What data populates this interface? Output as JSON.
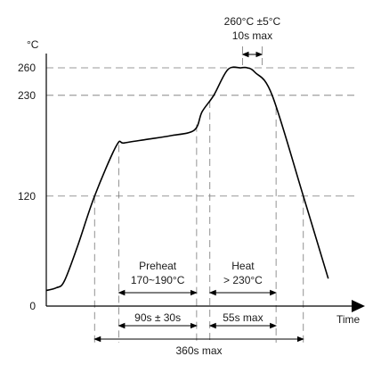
{
  "chart_data": {
    "type": "line",
    "title": "",
    "xlabel": "Time",
    "ylabel": "°C",
    "yticks": [
      {
        "value": 0,
        "label": "0"
      },
      {
        "value": 120,
        "label": "120"
      },
      {
        "value": 230,
        "label": "230"
      },
      {
        "value": 260,
        "label": "260"
      }
    ],
    "ylim": [
      0,
      275
    ],
    "xlim": [
      0,
      400
    ],
    "grid": true,
    "series": [
      {
        "x": [
          0,
          13,
          23,
          40,
          62,
          90,
          100,
          130,
          160,
          190,
          200,
          215,
          233,
          250,
          258,
          268,
          290,
          330,
          362
        ],
        "y": [
          17,
          20,
          27,
          65,
          120,
          175,
          178,
          182,
          186,
          192,
          212,
          230,
          258,
          260,
          260,
          255,
          230,
          120,
          30
        ]
      }
    ],
    "guides_x": [
      62,
      93,
      193,
      210,
      295,
      330,
      400
    ],
    "annotations": {
      "peak_temp": "260°C ±5°C",
      "peak_time": "10s max",
      "preheat_title": "Preheat",
      "preheat_range": "170~190°C",
      "heat_title": "Heat",
      "heat_range": "> 230°C",
      "preheat_time": "90s ± 30s",
      "heat_time": "55s max",
      "total_time": "360s max"
    },
    "dimensions": {
      "peak": [
        252,
        277
      ],
      "preheat": [
        93,
        193
      ],
      "heat": [
        210,
        295
      ],
      "preheat_time": [
        93,
        193
      ],
      "heat_time": [
        210,
        295
      ],
      "total": [
        62,
        330
      ]
    }
  }
}
